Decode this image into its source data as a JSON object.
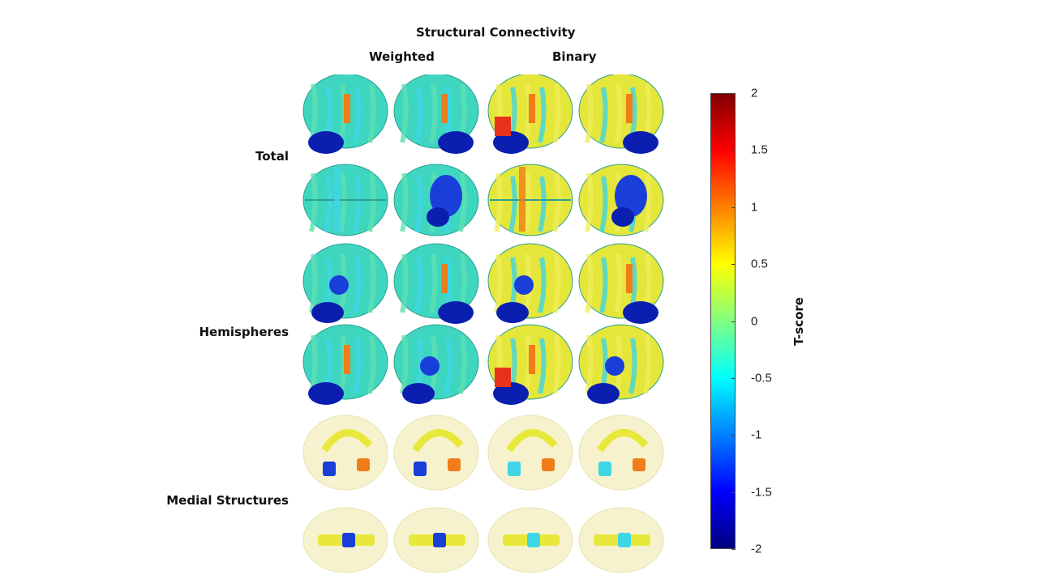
{
  "figure": {
    "title": "Structural Connectivity",
    "columns": [
      "Weighted",
      "Binary"
    ],
    "row_groups": [
      "Total",
      "Hemispheres",
      "Medial Structures"
    ]
  },
  "colorbar": {
    "label": "T-score",
    "ticks": [
      "2",
      "1.5",
      "1",
      "0.5",
      "0",
      "-0.5",
      "-1",
      "-1.5",
      "-2"
    ],
    "range": [
      -2,
      2
    ],
    "colormap": "jet"
  },
  "panels": [
    {
      "row": 0,
      "col": 0,
      "view": "lateral-left",
      "base": "#3fd6c0"
    },
    {
      "row": 0,
      "col": 1,
      "view": "lateral-right",
      "base": "#3fd6c0"
    },
    {
      "row": 0,
      "col": 2,
      "view": "lateral-left",
      "base": "#e4e63a"
    },
    {
      "row": 0,
      "col": 3,
      "view": "lateral-right",
      "base": "#e4e63a"
    },
    {
      "row": 1,
      "col": 0,
      "view": "top",
      "base": "#3fd6c0"
    },
    {
      "row": 1,
      "col": 1,
      "view": "bottom",
      "base": "#3fd6c0"
    },
    {
      "row": 1,
      "col": 2,
      "view": "top",
      "base": "#e4e63a"
    },
    {
      "row": 1,
      "col": 3,
      "view": "bottom",
      "base": "#e4e63a"
    },
    {
      "row": 2,
      "col": 0,
      "view": "medial",
      "base": "#3fd6c0"
    },
    {
      "row": 2,
      "col": 1,
      "view": "lateral-right",
      "base": "#3fd6c0"
    },
    {
      "row": 2,
      "col": 2,
      "view": "medial",
      "base": "#e4e63a"
    },
    {
      "row": 2,
      "col": 3,
      "view": "lateral-right",
      "base": "#e4e63a"
    },
    {
      "row": 3,
      "col": 0,
      "view": "lateral-left",
      "base": "#3fd6c0"
    },
    {
      "row": 3,
      "col": 1,
      "view": "medial",
      "base": "#3fd6c0"
    },
    {
      "row": 3,
      "col": 2,
      "view": "lateral-left",
      "base": "#e4e63a"
    },
    {
      "row": 3,
      "col": 3,
      "view": "medial",
      "base": "#e4e63a"
    },
    {
      "row": 4,
      "col": 0,
      "view": "glass-side",
      "base": "#f4efc0"
    },
    {
      "row": 4,
      "col": 1,
      "view": "glass-side",
      "base": "#f4efc0"
    },
    {
      "row": 4,
      "col": 2,
      "view": "glass-side",
      "base": "#f4efc0"
    },
    {
      "row": 4,
      "col": 3,
      "view": "glass-side",
      "base": "#f4efc0"
    },
    {
      "row": 5,
      "col": 0,
      "view": "glass-top",
      "base": "#f4efc0"
    },
    {
      "row": 5,
      "col": 1,
      "view": "glass-top",
      "base": "#f4efc0"
    },
    {
      "row": 5,
      "col": 2,
      "view": "glass-top",
      "base": "#f4efc0"
    },
    {
      "row": 5,
      "col": 3,
      "view": "glass-top",
      "base": "#f4efc0"
    }
  ]
}
